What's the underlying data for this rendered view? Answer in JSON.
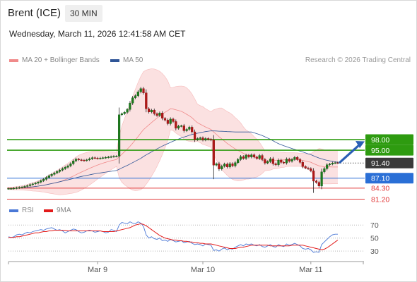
{
  "header": {
    "instrument": "Brent (ICE)",
    "interval": "30 MIN",
    "datetime": "Wednesday, March 11, 2026 12:41:58 AM CET",
    "credit": "Research © 2026 Trading Central"
  },
  "legend": {
    "ma20_label": "MA 20 + Bollinger Bands",
    "ma20_color": "#f08a8a",
    "ma50_label": "MA 50",
    "ma50_color": "#2f5597",
    "rsi_label": "RSI",
    "rsi_color": "#4a78d6",
    "ma9_label": "9MA",
    "ma9_color": "#e21a1a"
  },
  "chart_data": [
    {
      "type": "candlestick",
      "title": "",
      "x_ticks": [
        "Mar 9",
        "Mar 10",
        "Mar 11"
      ],
      "ylim": [
        79.7,
        118.5
      ],
      "levels": [
        {
          "value": 98.0,
          "label": "98.00",
          "color": "#2e9b10",
          "kind": "resistance"
        },
        {
          "value": 95.0,
          "label": "95.00",
          "color": "#2e9b10",
          "kind": "resistance"
        },
        {
          "value": 91.4,
          "label": "91.40",
          "color": "#3a3a3a",
          "kind": "last"
        },
        {
          "value": 87.1,
          "label": "87.10",
          "color": "#2a6fd6",
          "kind": "pivot"
        },
        {
          "value": 84.3,
          "label": "84.30",
          "color": "#e23b3b",
          "kind": "support"
        },
        {
          "value": 81.2,
          "label": "81.20",
          "color": "#e23b3b",
          "kind": "support"
        }
      ],
      "close": [
        84.2,
        84.2,
        84.3,
        84.4,
        84.5,
        84.6,
        84.8,
        85.0,
        85.3,
        85.5,
        85.7,
        86.0,
        86.4,
        86.8,
        87.3,
        87.8,
        88.2,
        88.6,
        89.0,
        89.4,
        89.8,
        90.2,
        90.6,
        91.2,
        92.0,
        92.5,
        92.3,
        92.2,
        92.1,
        92.3,
        92.6,
        92.9,
        92.8,
        92.7,
        92.8,
        92.9,
        93.0,
        93.1,
        93.2,
        93.3,
        93.3,
        105.0,
        105.3,
        105.7,
        106.5,
        108.3,
        109.8,
        110.4,
        111.5,
        112.4,
        111.2,
        106.7,
        105.8,
        106.3,
        105.3,
        104.8,
        105.5,
        104.0,
        103.5,
        102.5,
        103.8,
        103.1,
        101.2,
        101.8,
        101.9,
        100.5,
        100.9,
        101.5,
        100.2,
        98.0,
        98.3,
        98.5,
        97.9,
        98.3,
        98.1,
        97.9,
        90.8,
        91.2,
        89.7,
        90.5,
        91.1,
        90.3,
        91.2,
        90.6,
        91.5,
        92.4,
        93.2,
        92.7,
        93.6,
        93.1,
        93.7,
        93.1,
        92.7,
        93.5,
        92.4,
        91.4,
        91.8,
        92.6,
        91.2,
        90.9,
        92.2,
        91.6,
        91.4,
        92.5,
        91.9,
        92.4,
        93.0,
        92.4,
        91.6,
        90.4,
        90.0,
        89.8,
        89.2,
        86.3,
        85.9,
        84.9,
        88.9,
        89.8,
        90.9,
        91.1,
        91.4,
        91.5,
        91.4
      ],
      "rsi": {
        "ylim": [
          15,
          80
        ],
        "ticks": [
          70,
          50,
          30
        ],
        "rsi": [
          52,
          51,
          52,
          55,
          56,
          55,
          57,
          59,
          58,
          60,
          61,
          62,
          63,
          62,
          64,
          65,
          66,
          64,
          62,
          63,
          61,
          58,
          60,
          62,
          64,
          63,
          60,
          58,
          59,
          61,
          62,
          61,
          59,
          60,
          61,
          60,
          58,
          59,
          63,
          62,
          60,
          70,
          74,
          73,
          72,
          75,
          73,
          72,
          75,
          73,
          68,
          55,
          50,
          52,
          49,
          48,
          50,
          46,
          47,
          45,
          48,
          46,
          44,
          45,
          46,
          43,
          44,
          45,
          42,
          40,
          41,
          40,
          38,
          41,
          40,
          39,
          31,
          32,
          30,
          33,
          35,
          32,
          34,
          33,
          36,
          38,
          40,
          38,
          41,
          40,
          41,
          39,
          38,
          40,
          37,
          36,
          38,
          40,
          37,
          36,
          40,
          38,
          37,
          41,
          39,
          40,
          42,
          40,
          38,
          34,
          33,
          34,
          32,
          28,
          29,
          28,
          40,
          44,
          48,
          52,
          55,
          56,
          56
        ],
        "ma9": [
          51,
          51,
          51,
          52,
          52,
          53,
          54,
          55,
          56,
          57,
          58,
          58,
          59,
          60,
          60,
          61,
          61,
          62,
          62,
          62,
          62,
          62,
          61,
          61,
          61,
          61,
          61,
          61,
          61,
          61,
          61,
          61,
          61,
          61,
          61,
          60,
          60,
          60,
          60,
          60,
          61,
          62,
          63,
          64,
          65,
          66,
          68,
          70,
          71,
          72,
          71,
          69,
          66,
          63,
          60,
          57,
          54,
          52,
          50,
          49,
          48,
          47,
          47,
          46,
          46,
          45,
          45,
          44,
          44,
          43,
          43,
          42,
          42,
          41,
          41,
          41,
          40,
          39,
          38,
          37,
          36,
          35,
          34,
          34,
          34,
          35,
          36,
          36,
          37,
          38,
          39,
          39,
          39,
          39,
          39,
          39,
          39,
          38,
          38,
          38,
          38,
          38,
          38,
          38,
          38,
          39,
          39,
          39,
          39,
          39,
          38,
          37,
          36,
          35,
          34,
          33,
          32,
          33,
          35,
          38,
          41,
          44,
          47
        ]
      }
    }
  ]
}
